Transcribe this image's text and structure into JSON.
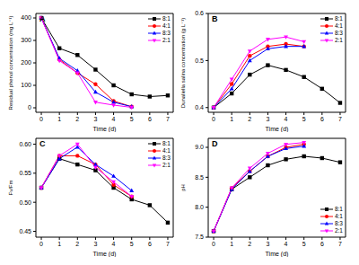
{
  "chart_data": [
    {
      "type": "line",
      "title": "A",
      "x_label": "Time (d)",
      "y_label": "Residual phenol concentration (mg L⁻¹)",
      "x": [
        0,
        1,
        2,
        3,
        4,
        5,
        6,
        7
      ],
      "xlim": [
        -0.3,
        7.3
      ],
      "xticks": [
        0,
        1,
        2,
        3,
        4,
        5,
        6,
        7
      ],
      "ylim": [
        -20,
        420
      ],
      "yticks": [
        0,
        100,
        200,
        300,
        400
      ],
      "legend": "upper right",
      "series": [
        {
          "name": "8:1",
          "color": "#000000",
          "marker": "square",
          "values": [
            400,
            265,
            235,
            170,
            100,
            60,
            50,
            55
          ]
        },
        {
          "name": "4:1",
          "color": "#ff0000",
          "marker": "circle",
          "values": [
            400,
            215,
            155,
            105,
            30,
            5,
            null,
            null
          ]
        },
        {
          "name": "8:3",
          "color": "#0000ff",
          "marker": "triangle-up",
          "values": [
            400,
            220,
            165,
            70,
            25,
            5,
            null,
            null
          ]
        },
        {
          "name": "2:1",
          "color": "#ff00ff",
          "marker": "triangle-down",
          "values": [
            400,
            210,
            155,
            25,
            12,
            2,
            null,
            null
          ]
        }
      ]
    },
    {
      "type": "line",
      "title": "B",
      "x_label": "Time (d)",
      "y_label": "Dunaliella salina concentration (g L⁻¹)",
      "x": [
        0,
        1,
        2,
        3,
        4,
        5,
        6,
        7
      ],
      "xlim": [
        -0.3,
        7.3
      ],
      "xticks": [
        0,
        1,
        2,
        3,
        4,
        5,
        6,
        7
      ],
      "ylim": [
        0.39,
        0.6
      ],
      "yticks": [
        0.4,
        0.5,
        0.6
      ],
      "legend": "upper right",
      "series": [
        {
          "name": "8:1",
          "color": "#000000",
          "marker": "square",
          "values": [
            0.4,
            0.43,
            0.47,
            0.49,
            0.48,
            0.465,
            0.44,
            0.41
          ]
        },
        {
          "name": "4:1",
          "color": "#ff0000",
          "marker": "circle",
          "values": [
            0.4,
            0.45,
            0.51,
            0.53,
            0.535,
            0.53,
            null,
            null
          ]
        },
        {
          "name": "8:3",
          "color": "#0000ff",
          "marker": "triangle-up",
          "values": [
            0.4,
            0.44,
            0.5,
            0.525,
            0.53,
            0.53,
            null,
            null
          ]
        },
        {
          "name": "2:1",
          "color": "#ff00ff",
          "marker": "triangle-down",
          "values": [
            0.4,
            0.46,
            0.52,
            0.545,
            0.55,
            0.54,
            null,
            null
          ]
        }
      ]
    },
    {
      "type": "line",
      "title": "C",
      "x_label": "Time (d)",
      "y_label": "Fv/Fm",
      "x": [
        0,
        1,
        2,
        3,
        4,
        5,
        6,
        7
      ],
      "xlim": [
        -0.3,
        7.3
      ],
      "xticks": [
        0,
        1,
        2,
        3,
        4,
        5,
        6,
        7
      ],
      "ylim": [
        0.44,
        0.61
      ],
      "yticks": [
        0.45,
        {
          "value": 0.5,
          "label": "0.50"
        },
        0.55,
        {
          "value": 0.6,
          "label": "0.60"
        }
      ],
      "legend": "upper right",
      "series": [
        {
          "name": "8:1",
          "color": "#000000",
          "marker": "square",
          "values": [
            0.525,
            0.575,
            0.565,
            0.555,
            0.525,
            0.505,
            0.495,
            0.465
          ]
        },
        {
          "name": "4:1",
          "color": "#ff0000",
          "marker": "circle",
          "values": [
            0.525,
            0.58,
            0.58,
            0.565,
            0.53,
            0.51,
            null,
            null
          ]
        },
        {
          "name": "8:3",
          "color": "#0000ff",
          "marker": "triangle-up",
          "values": [
            0.525,
            0.575,
            0.595,
            0.565,
            0.545,
            0.52,
            null,
            null
          ]
        },
        {
          "name": "2:1",
          "color": "#ff00ff",
          "marker": "triangle-down",
          "values": [
            0.525,
            0.58,
            0.6,
            0.56,
            0.535,
            0.51,
            null,
            null
          ]
        }
      ]
    },
    {
      "type": "line",
      "title": "D",
      "x_label": "Time (d)",
      "y_label": "pH",
      "x": [
        0,
        1,
        2,
        3,
        4,
        5,
        6,
        7
      ],
      "xlim": [
        -0.3,
        7.3
      ],
      "xticks": [
        0,
        1,
        2,
        3,
        4,
        5,
        6,
        7
      ],
      "ylim": [
        7.5,
        9.15
      ],
      "yticks": [
        7.5,
        {
          "value": 8,
          "label": "8.0"
        },
        8.5,
        {
          "value": 9,
          "label": "9.0"
        }
      ],
      "legend": "lower right",
      "series": [
        {
          "name": "8:1",
          "color": "#000000",
          "marker": "square",
          "values": [
            7.6,
            8.3,
            8.5,
            8.7,
            8.8,
            8.85,
            8.82,
            8.75
          ]
        },
        {
          "name": "4:1",
          "color": "#ff0000",
          "marker": "circle",
          "values": [
            7.6,
            8.32,
            8.6,
            8.85,
            9.0,
            9.05,
            null,
            null
          ]
        },
        {
          "name": "8:3",
          "color": "#0000ff",
          "marker": "triangle-up",
          "values": [
            7.6,
            8.3,
            8.6,
            8.85,
            8.98,
            9.02,
            null,
            null
          ]
        },
        {
          "name": "2:1",
          "color": "#ff00ff",
          "marker": "triangle-down",
          "values": [
            7.6,
            8.32,
            8.65,
            8.9,
            9.05,
            9.08,
            null,
            null
          ]
        }
      ]
    }
  ]
}
